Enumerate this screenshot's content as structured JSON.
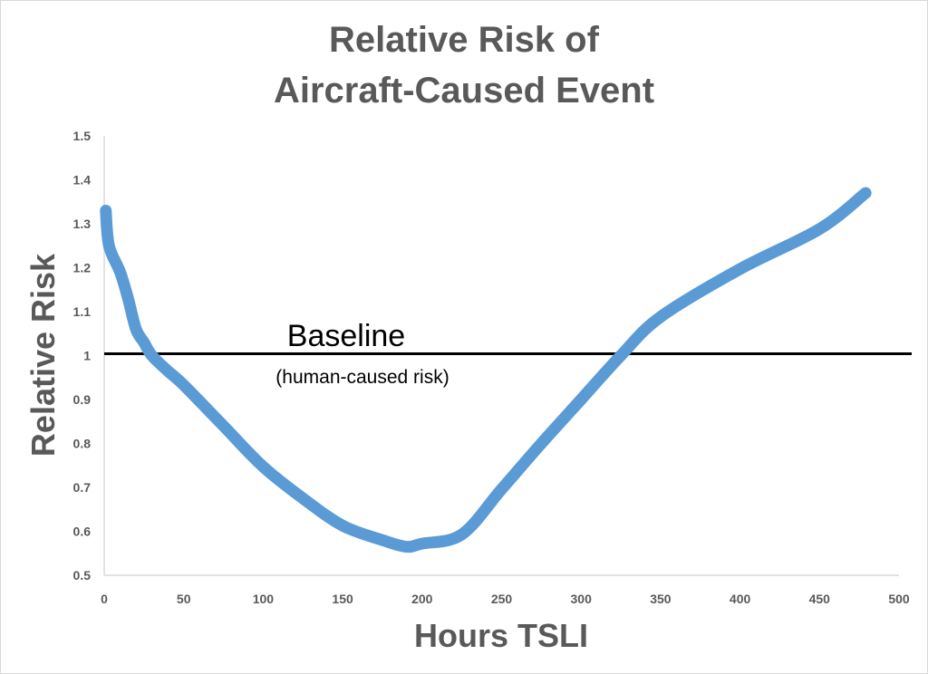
{
  "chart_data": {
    "type": "line",
    "title": [
      "Relative Risk of",
      "Aircraft-Caused Event"
    ],
    "xlabel": "Hours TSLI",
    "ylabel": "Relative Risk",
    "xlim": [
      0,
      500
    ],
    "ylim": [
      0.5,
      1.5
    ],
    "xticks": [
      "0",
      "50",
      "100",
      "150",
      "200",
      "250",
      "300",
      "350",
      "400",
      "450",
      "500"
    ],
    "yticks": [
      "0.5",
      "0.6",
      "0.7",
      "0.8",
      "0.9",
      "1",
      "1.1",
      "1.2",
      "1.3",
      "1.4",
      "1.5"
    ],
    "grid": false,
    "series": [
      {
        "name": "Relative Risk",
        "color": "#5b9bd5",
        "x": [
          1,
          3,
          10,
          15,
          20,
          25,
          30,
          40,
          50,
          75,
          100,
          125,
          150,
          175,
          190,
          200,
          225,
          250,
          275,
          300,
          325,
          350,
          400,
          450,
          479
        ],
        "y": [
          1.33,
          1.25,
          1.19,
          1.13,
          1.06,
          1.03,
          1.0,
          0.965,
          0.933,
          0.84,
          0.747,
          0.675,
          0.613,
          0.58,
          0.565,
          0.572,
          0.593,
          0.696,
          0.8,
          0.9,
          1.0,
          1.088,
          1.197,
          1.288,
          1.37
        ]
      }
    ],
    "reference_line": {
      "y": 1,
      "label": "Baseline",
      "sublabel": "(human-caused risk)",
      "color": "#000000"
    }
  }
}
